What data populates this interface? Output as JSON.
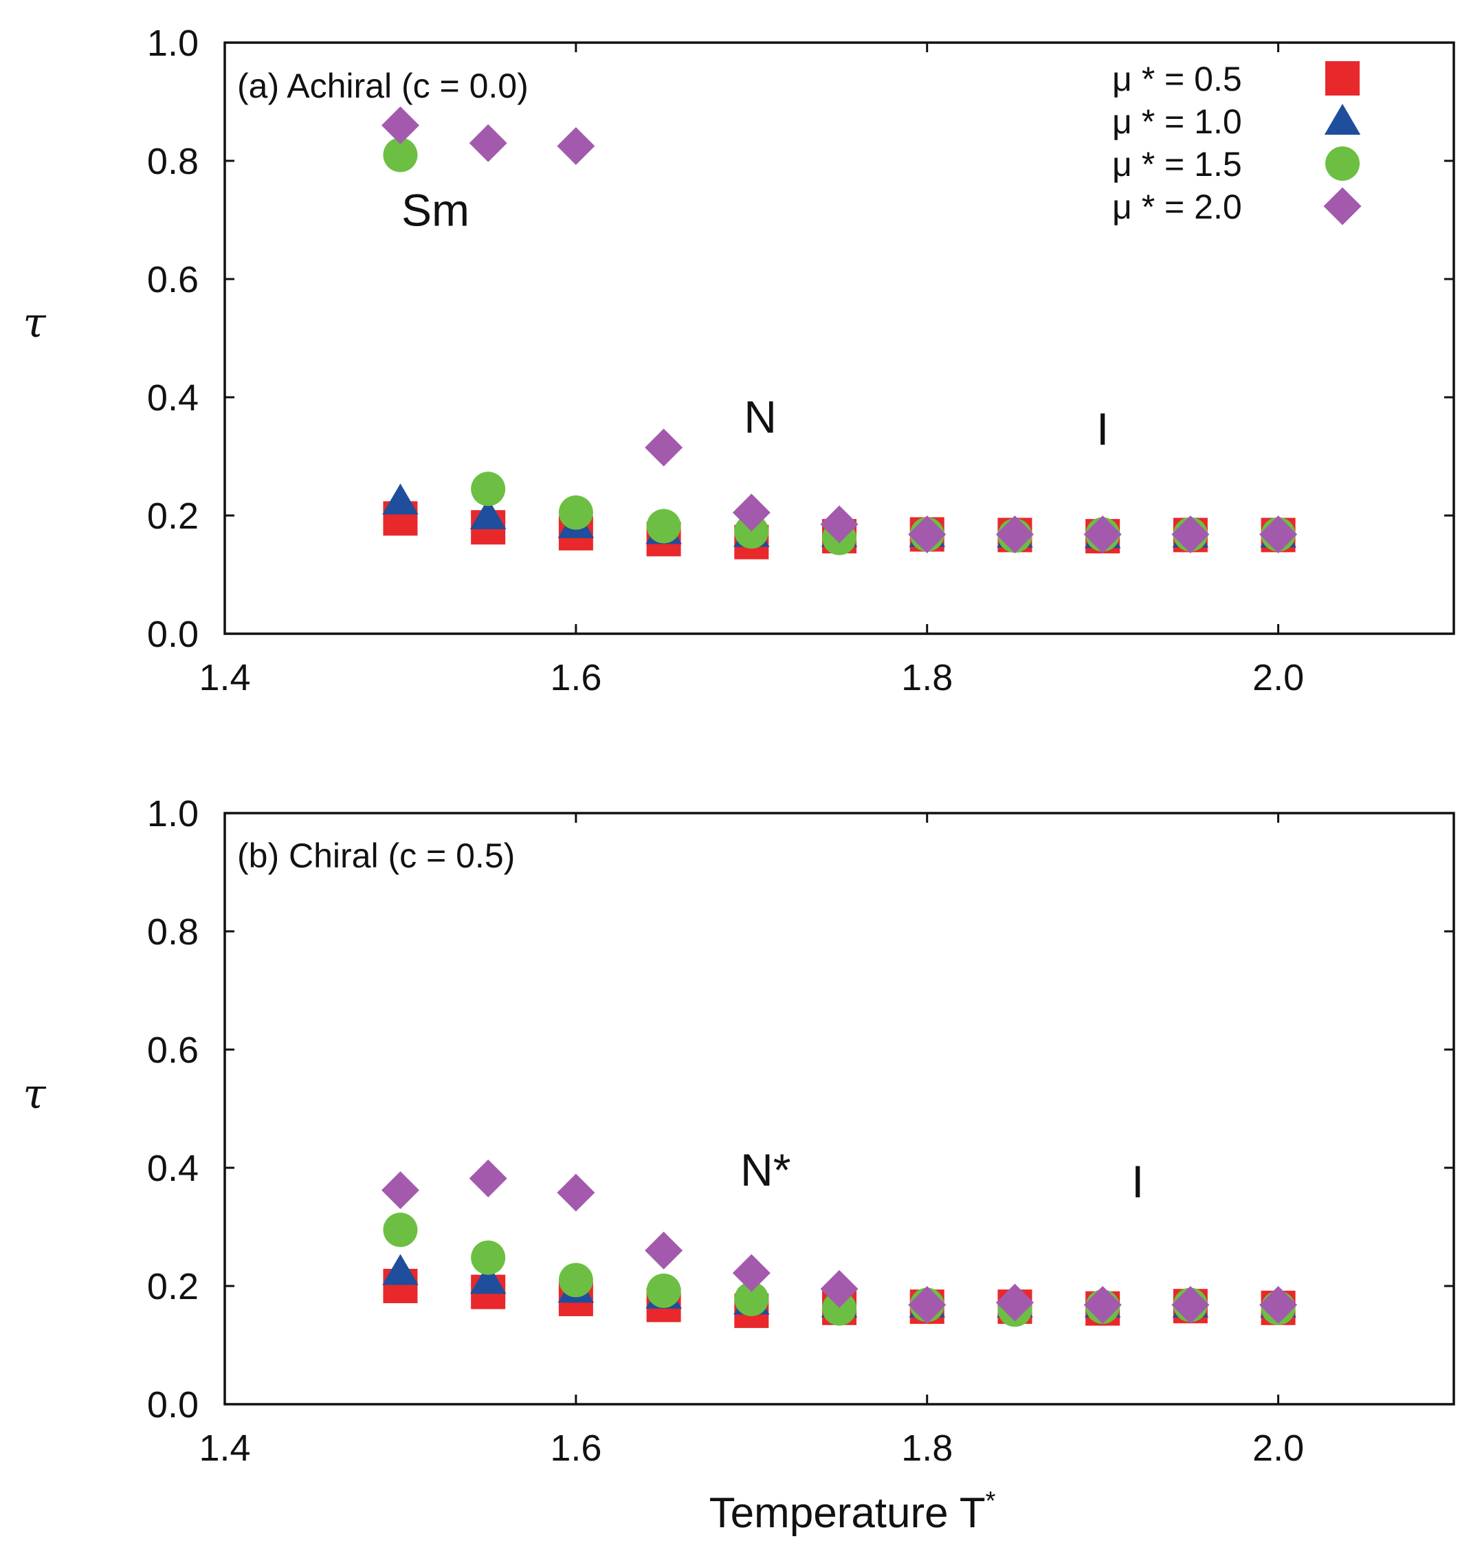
{
  "chart_data": [
    {
      "type": "scatter",
      "panel_label": "(a) Achiral (c = 0.0)",
      "xlabel": "",
      "ylabel": "τ",
      "xlim": [
        1.4,
        2.1
      ],
      "ylim": [
        0.0,
        1.0
      ],
      "x_ticks": [
        "1.4",
        "1.6",
        "1.8",
        "2.0"
      ],
      "y_ticks": [
        "0.0",
        "0.2",
        "0.4",
        "0.6",
        "0.8",
        "1.0"
      ],
      "phase_labels": [
        {
          "text": "Sm",
          "x": 1.52,
          "y": 0.69
        },
        {
          "text": "N",
          "x": 1.705,
          "y": 0.34
        },
        {
          "text": "I",
          "x": 1.9,
          "y": 0.32
        }
      ],
      "series": [
        {
          "name": "μ * = 0.5",
          "marker": "square",
          "color": "#e8282b",
          "x": [
            1.5,
            1.55,
            1.6,
            1.65,
            1.7,
            1.75,
            1.8,
            1.85,
            1.9,
            1.95,
            2.0
          ],
          "y": [
            0.195,
            0.18,
            0.17,
            0.16,
            0.155,
            0.165,
            0.168,
            0.167,
            0.165,
            0.167,
            0.167
          ]
        },
        {
          "name": "μ * = 1.0",
          "marker": "triangle",
          "color": "#1f4e9c",
          "x": [
            1.5,
            1.55,
            1.6,
            1.65,
            1.7,
            1.75,
            1.8,
            1.85,
            1.9,
            1.95,
            2.0
          ],
          "y": [
            0.225,
            0.2,
            0.185,
            0.175,
            0.17,
            0.17,
            0.17,
            0.169,
            0.168,
            0.169,
            0.169
          ]
        },
        {
          "name": "μ * = 1.5",
          "marker": "circle",
          "color": "#6cbf42",
          "x": [
            1.5,
            1.55,
            1.6,
            1.65,
            1.7,
            1.75,
            1.8,
            1.85,
            1.9,
            1.95,
            2.0
          ],
          "y": [
            0.81,
            0.245,
            0.205,
            0.182,
            0.173,
            0.162,
            0.168,
            0.166,
            0.168,
            0.168,
            0.168
          ]
        },
        {
          "name": "μ * = 2.0",
          "marker": "diamond",
          "color": "#a35aad",
          "x": [
            1.5,
            1.55,
            1.6,
            1.65,
            1.7,
            1.75,
            1.8,
            1.85,
            1.9,
            1.95,
            2.0
          ],
          "y": [
            0.86,
            0.83,
            0.825,
            0.315,
            0.205,
            0.185,
            0.168,
            0.168,
            0.168,
            0.168,
            0.168
          ]
        }
      ]
    },
    {
      "type": "scatter",
      "panel_label": "(b) Chiral (c = 0.5)",
      "xlabel": "Temperature T",
      "xlabel_superscript": "*",
      "ylabel": "τ",
      "xlim": [
        1.4,
        2.1
      ],
      "ylim": [
        0.0,
        1.0
      ],
      "x_ticks": [
        "1.4",
        "1.6",
        "1.8",
        "2.0"
      ],
      "y_ticks": [
        "0.0",
        "0.2",
        "0.4",
        "0.6",
        "0.8",
        "1.0"
      ],
      "phase_labels": [
        {
          "text": "N*",
          "x": 1.708,
          "y": 0.37
        },
        {
          "text": "I",
          "x": 1.92,
          "y": 0.35
        }
      ],
      "series": [
        {
          "name": "μ * = 0.5",
          "marker": "square",
          "color": "#e8282b",
          "x": [
            1.5,
            1.55,
            1.6,
            1.65,
            1.7,
            1.75,
            1.8,
            1.85,
            1.9,
            1.95,
            2.0
          ],
          "y": [
            0.2,
            0.19,
            0.178,
            0.168,
            0.158,
            0.163,
            0.165,
            0.165,
            0.162,
            0.166,
            0.163
          ]
        },
        {
          "name": "μ * = 1.0",
          "marker": "triangle",
          "color": "#1f4e9c",
          "x": [
            1.5,
            1.55,
            1.6,
            1.65,
            1.7,
            1.75,
            1.8,
            1.85,
            1.9,
            1.95,
            2.0
          ],
          "y": [
            0.225,
            0.21,
            0.195,
            0.185,
            0.175,
            0.17,
            0.17,
            0.17,
            0.17,
            0.17,
            0.17
          ]
        },
        {
          "name": "μ * = 1.5",
          "marker": "circle",
          "color": "#6cbf42",
          "x": [
            1.5,
            1.55,
            1.6,
            1.65,
            1.7,
            1.75,
            1.8,
            1.85,
            1.9,
            1.95,
            2.0
          ],
          "y": [
            0.295,
            0.248,
            0.21,
            0.192,
            0.178,
            0.162,
            0.168,
            0.16,
            0.165,
            0.168,
            0.163
          ]
        },
        {
          "name": "μ * = 2.0",
          "marker": "diamond",
          "color": "#a35aad",
          "x": [
            1.5,
            1.55,
            1.6,
            1.65,
            1.7,
            1.75,
            1.8,
            1.85,
            1.9,
            1.95,
            2.0
          ],
          "y": [
            0.362,
            0.382,
            0.358,
            0.26,
            0.222,
            0.195,
            0.168,
            0.172,
            0.168,
            0.168,
            0.168
          ]
        }
      ]
    }
  ]
}
